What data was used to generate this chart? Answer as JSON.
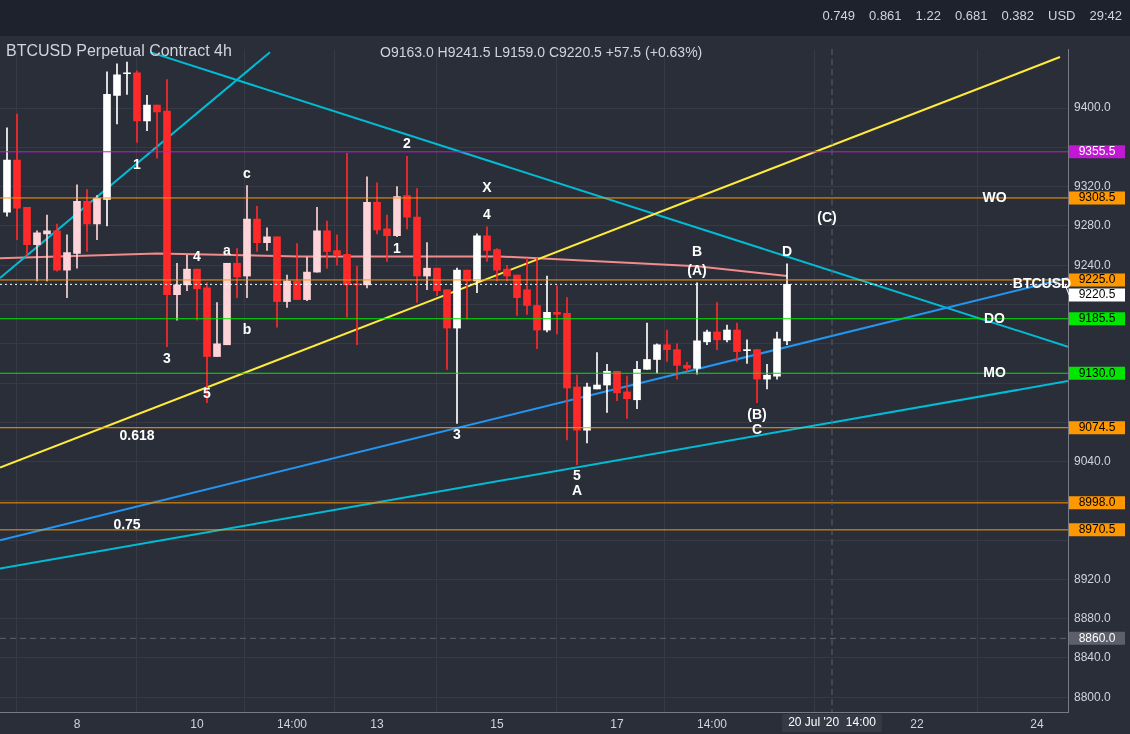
{
  "chart_data": {
    "type": "candlestick",
    "title": "BTCUSD Perpetual Contract 4h",
    "subtitle": "O9163.0 H9241.5 L9159.0 C9220.5 +57.5 (+0.63%)",
    "x": [
      "2020-07-06T20:00",
      "2020-07-07T00:00",
      "2020-07-07T04:00",
      "2020-07-07T08:00",
      "2020-07-07T12:00",
      "2020-07-07T16:00",
      "2020-07-07T20:00",
      "2020-07-08T00:00",
      "2020-07-08T04:00",
      "2020-07-08T08:00",
      "2020-07-08T12:00",
      "2020-07-08T16:00",
      "2020-07-08T20:00",
      "2020-07-09T00:00",
      "2020-07-09T04:00",
      "2020-07-09T08:00",
      "2020-07-09T12:00",
      "2020-07-09T16:00",
      "2020-07-09T20:00",
      "2020-07-10T00:00",
      "2020-07-10T04:00",
      "2020-07-10T08:00",
      "2020-07-10T12:00",
      "2020-07-10T16:00",
      "2020-07-10T20:00",
      "2020-07-11T00:00",
      "2020-07-11T04:00",
      "2020-07-11T08:00",
      "2020-07-11T12:00",
      "2020-07-11T16:00",
      "2020-07-11T20:00",
      "2020-07-12T00:00",
      "2020-07-12T04:00",
      "2020-07-12T08:00",
      "2020-07-12T12:00",
      "2020-07-12T16:00",
      "2020-07-12T20:00",
      "2020-07-13T00:00",
      "2020-07-13T04:00",
      "2020-07-13T08:00",
      "2020-07-13T12:00",
      "2020-07-13T16:00",
      "2020-07-13T20:00",
      "2020-07-14T00:00",
      "2020-07-14T04:00",
      "2020-07-14T08:00",
      "2020-07-14T12:00",
      "2020-07-14T16:00",
      "2020-07-14T20:00",
      "2020-07-15T00:00",
      "2020-07-15T04:00",
      "2020-07-15T08:00",
      "2020-07-15T12:00",
      "2020-07-15T16:00",
      "2020-07-15T20:00",
      "2020-07-16T00:00",
      "2020-07-16T04:00",
      "2020-07-16T08:00",
      "2020-07-16T12:00",
      "2020-07-16T16:00",
      "2020-07-16T20:00",
      "2020-07-17T00:00",
      "2020-07-17T04:00",
      "2020-07-17T08:00",
      "2020-07-17T12:00",
      "2020-07-17T16:00",
      "2020-07-17T20:00",
      "2020-07-18T00:00",
      "2020-07-18T04:00",
      "2020-07-18T08:00",
      "2020-07-18T12:00",
      "2020-07-18T16:00",
      "2020-07-18T20:00",
      "2020-07-19T00:00",
      "2020-07-19T04:00",
      "2020-07-19T08:00",
      "2020-07-19T12:00",
      "2020-07-19T16:00",
      "2020-07-19T20:00"
    ],
    "ohlc": [
      [
        9294,
        9380,
        9290,
        9347
      ],
      [
        9347,
        9394,
        9266,
        9298
      ],
      [
        9299,
        9299,
        9249,
        9261
      ],
      [
        9261,
        9275,
        9224,
        9273
      ],
      [
        9272,
        9291,
        9224,
        9275
      ],
      [
        9275,
        9282,
        9234,
        9235
      ],
      [
        9235,
        9271,
        9207,
        9253
      ],
      [
        9252,
        9322,
        9237,
        9305
      ],
      [
        9305,
        9317,
        9254,
        9282
      ],
      [
        9282,
        9311,
        9266,
        9308
      ],
      [
        9307,
        9437,
        9280,
        9414
      ],
      [
        9413,
        9445,
        9384,
        9434
      ],
      [
        9435,
        9447,
        9414,
        9435
      ],
      [
        9436,
        9438,
        9365,
        9387
      ],
      [
        9387,
        9413,
        9377,
        9403
      ],
      [
        9403,
        9403,
        9349,
        9396
      ],
      [
        9397,
        9429,
        9157,
        9210
      ],
      [
        9210,
        9242,
        9184,
        9220
      ],
      [
        9220,
        9250,
        9214,
        9236
      ],
      [
        9236,
        9236,
        9184,
        9216
      ],
      [
        9217,
        9222,
        9100,
        9147
      ],
      [
        9147,
        9202,
        9147,
        9160
      ],
      [
        9159,
        9242,
        9159,
        9242
      ],
      [
        9242,
        9257,
        9207,
        9228
      ],
      [
        9229,
        9321,
        9207,
        9287
      ],
      [
        9287,
        9300,
        9254,
        9263
      ],
      [
        9263,
        9278,
        9255,
        9269
      ],
      [
        9269,
        9269,
        9177,
        9203
      ],
      [
        9203,
        9230,
        9197,
        9224
      ],
      [
        9224,
        9262,
        9205,
        9205
      ],
      [
        9205,
        9248,
        9204,
        9233
      ],
      [
        9233,
        9299,
        9233,
        9275
      ],
      [
        9275,
        9285,
        9237,
        9254
      ],
      [
        9255,
        9271,
        9240,
        9250
      ],
      [
        9251,
        9354,
        9187,
        9220
      ],
      [
        9221,
        9239,
        9159,
        9220
      ],
      [
        9220,
        9330,
        9217,
        9304
      ],
      [
        9304,
        9324,
        9272,
        9276
      ],
      [
        9277,
        9291,
        9244,
        9270
      ],
      [
        9270,
        9320,
        9269,
        9310
      ],
      [
        9311,
        9351,
        9277,
        9289
      ],
      [
        9289,
        9318,
        9202,
        9229
      ],
      [
        9229,
        9263,
        9215,
        9237
      ],
      [
        9237,
        9237,
        9209,
        9214
      ],
      [
        9215,
        9215,
        9134,
        9176
      ],
      [
        9176,
        9237,
        9079,
        9235
      ],
      [
        9235,
        9235,
        9185,
        9224
      ],
      [
        9224,
        9272,
        9212,
        9270
      ],
      [
        9270,
        9279,
        9244,
        9255
      ],
      [
        9256,
        9257,
        9224,
        9235
      ],
      [
        9236,
        9240,
        9224,
        9229
      ],
      [
        9230,
        9230,
        9189,
        9207
      ],
      [
        9215,
        9247,
        9190,
        9199
      ],
      [
        9199,
        9247,
        9155,
        9174
      ],
      [
        9174,
        9229,
        9172,
        9192
      ],
      [
        9192,
        9219,
        9170,
        9190
      ],
      [
        9191,
        9207,
        9062,
        9115
      ],
      [
        9116,
        9128,
        9037,
        9072
      ],
      [
        9072,
        9120,
        9059,
        9116
      ],
      [
        9114,
        9151,
        9114,
        9118
      ],
      [
        9118,
        9139,
        9090,
        9132
      ],
      [
        9132,
        9132,
        9102,
        9110
      ],
      [
        9111,
        9127,
        9084,
        9104
      ],
      [
        9103,
        9142,
        9094,
        9134
      ],
      [
        9134,
        9181,
        9134,
        9144
      ],
      [
        9144,
        9160,
        9130,
        9159
      ],
      [
        9159,
        9174,
        9142,
        9154
      ],
      [
        9154,
        9160,
        9124,
        9138
      ],
      [
        9138,
        9141,
        9132,
        9135
      ],
      [
        9135,
        9222,
        9129,
        9163
      ],
      [
        9162,
        9174,
        9159,
        9172
      ],
      [
        9172,
        9202,
        9154,
        9164
      ],
      [
        9164,
        9179,
        9162,
        9174
      ],
      [
        9174,
        9181,
        9142,
        9152
      ],
      [
        9153,
        9164,
        9140,
        9154
      ],
      [
        9154,
        9154,
        9100,
        9124
      ],
      [
        9124,
        9139,
        9114,
        9128
      ],
      [
        9127,
        9172,
        9124,
        9165
      ],
      [
        9163,
        9241.5,
        9159,
        9220.5
      ]
    ],
    "colors": [
      "#ffffff",
      "#ff2a2a",
      "#ff2a2a",
      "#ffd4d8",
      "#ffd4d8",
      "#ff2a2a",
      "#ffd4d8",
      "#ffd4d8",
      "#ff2a2a",
      "#ffd4d8",
      "#ffffff",
      "#ffffff",
      "#ffffff",
      "#ff2a2a",
      "#ffffff",
      "#ff2a2a",
      "#ff2a2a",
      "#ffd4d8",
      "#ffd4d8",
      "#ff2a2a",
      "#ff2a2a",
      "#ffd4d8",
      "#ffd4d8",
      "#ff2a2a",
      "#ffd4d8",
      "#ff2a2a",
      "#ffd4d8",
      "#ff2a2a",
      "#ffd4d8",
      "#ff2a2a",
      "#ffd4d8",
      "#ffd4d8",
      "#ff2a2a",
      "#ff2a2a",
      "#ff2a2a",
      "#ff2a2a",
      "#ffd4d8",
      "#ff2a2a",
      "#ff2a2a",
      "#ffd4d8",
      "#ff2a2a",
      "#ff2a2a",
      "#ffd4d8",
      "#ff2a2a",
      "#ff2a2a",
      "#ffffff",
      "#ff2a2a",
      "#ffffff",
      "#ff2a2a",
      "#ff2a2a",
      "#ff2a2a",
      "#ff2a2a",
      "#ff2a2a",
      "#ff2a2a",
      "#ffffff",
      "#ff2a2a",
      "#ff2a2a",
      "#ff2a2a",
      "#ffffff",
      "#ffffff",
      "#ffffff",
      "#ff2a2a",
      "#ff2a2a",
      "#ffffff",
      "#ffffff",
      "#ffffff",
      "#ff2a2a",
      "#ff2a2a",
      "#ff2a2a",
      "#ffffff",
      "#ffffff",
      "#ff2a2a",
      "#ffffff",
      "#ff2a2a",
      "#ffffff",
      "#ff2a2a",
      "#ffffff",
      "#ffffff",
      "#ffffff"
    ],
    "series": [
      {
        "type": "line",
        "color": "#ffeb3b",
        "x": [
          "2020-07-06T17:12",
          "2020-07-24T09:12"
        ],
        "values": [
          9034,
          9452
        ]
      },
      {
        "type": "line",
        "color": "#2196f3",
        "x": [
          "2020-07-06T17:12",
          "2020-07-24T12:24"
        ],
        "values": [
          8960,
          9227
        ]
      },
      {
        "type": "line",
        "color": "#00bcd4",
        "x": [
          "2020-07-06T17:12",
          "2020-07-24T12:24"
        ],
        "values": [
          8931,
          9122
        ]
      },
      {
        "type": "line",
        "color": "#00bcd4",
        "x": [
          "2020-07-09T05:12",
          "2020-07-24T12:24"
        ],
        "values": [
          9457,
          9157
        ]
      },
      {
        "type": "line",
        "color": "#00bcd4",
        "x": [
          "2020-07-06T17:12",
          "2020-07-11T05:12"
        ],
        "values": [
          9227,
          9457
        ]
      },
      {
        "type": "line",
        "color": "#f28b8b",
        "x": [
          "2020-07-06T17:12",
          "2020-07-09T08:00",
          "2020-07-11T17:00",
          "2020-07-15T01:00",
          "2020-07-18T08:00",
          "2020-07-19T20:00"
        ],
        "values": [
          9247,
          9252,
          9249,
          9249,
          9239,
          9229
        ]
      }
    ],
    "xlim": [
      "2020-07-06T17:12",
      "2020-07-24T12:24"
    ],
    "xticks": [
      {
        "value": "2020-07-08",
        "label": "8"
      },
      {
        "value": "2020-07-10",
        "label": "10"
      },
      {
        "value": "2020-07-11T14:00",
        "label": "14:00"
      },
      {
        "value": "2020-07-13",
        "label": "13"
      },
      {
        "value": "2020-07-15",
        "label": "15"
      },
      {
        "value": "2020-07-17",
        "label": "17"
      },
      {
        "value": "2020-07-18T14:00",
        "label": "14:00"
      },
      {
        "value": "2020-07-22",
        "label": "22"
      },
      {
        "value": "2020-07-24",
        "label": "24"
      }
    ],
    "ylim": [
      8785,
      9460
    ],
    "yticks": [
      {
        "value": 9400,
        "label": "9400.0"
      },
      {
        "value": 9360,
        "label": null
      },
      {
        "value": 9320,
        "label": "9320.0"
      },
      {
        "value": 9280,
        "label": "9280.0"
      },
      {
        "value": 9240,
        "label": "9240.0"
      },
      {
        "value": 9200,
        "label": null
      },
      {
        "value": 9160,
        "label": null
      },
      {
        "value": 9120,
        "label": null
      },
      {
        "value": 9080,
        "label": null
      },
      {
        "value": 9040,
        "label": "9040.0"
      },
      {
        "value": 9000,
        "label": null
      },
      {
        "value": 8960,
        "label": null
      },
      {
        "value": 8920,
        "label": "8920.0"
      },
      {
        "value": 8880,
        "label": "8880.0"
      },
      {
        "value": 8840,
        "label": "8840.0"
      },
      {
        "value": 8800,
        "label": "8800.0"
      }
    ],
    "grid": true,
    "ref_lines": [
      {
        "axis": "y",
        "value": 9355.5,
        "color": "#c218d6",
        "label": "9355.5"
      },
      {
        "axis": "y",
        "value": 9308.5,
        "color": "#ff9800",
        "label": "9308.5"
      },
      {
        "axis": "y",
        "value": 9225.0,
        "color": "#ff9800",
        "label": "9225.0"
      },
      {
        "axis": "y",
        "value": 9220.5,
        "color": "#ffffff",
        "label": "9220.5",
        "line_style": "dotted"
      },
      {
        "axis": "y",
        "value": 9185.5,
        "color": "#00e600",
        "label": "9185.5"
      },
      {
        "axis": "y",
        "value": 9130.0,
        "color": "#00e600",
        "label": "9130.0"
      },
      {
        "axis": "y",
        "value": 9074.5,
        "color": "#ff9800",
        "label": "9074.5"
      },
      {
        "axis": "y",
        "value": 8998.0,
        "color": "#ff9800",
        "label": "8998.0"
      },
      {
        "axis": "y",
        "value": 8970.5,
        "color": "#ff9800",
        "label": "8970.5"
      },
      {
        "axis": "y",
        "value": 8860.0,
        "color": "#5d606b",
        "label": "8860.0",
        "line_style": "dashed"
      },
      {
        "axis": "x",
        "value": "2020-07-20T14:00",
        "color": "#5d606b",
        "label": "20 Jul '20  14:00",
        "line_style": "dashed"
      }
    ],
    "annotations": [
      {
        "text": "1",
        "x": "2020-07-09T00:00",
        "y": 9354
      },
      {
        "text": "2",
        "x": "2020-07-13T12:00",
        "y": 9351
      },
      {
        "text": "3",
        "x": "2020-07-09T12:00",
        "y": 9157
      },
      {
        "text": "4",
        "x": "2020-07-10T00:00",
        "y": 9236
      },
      {
        "text": "5",
        "x": "2020-07-10T04:00",
        "y": 9109
      },
      {
        "text": "a",
        "x": "2020-07-10T12:00",
        "y": 9242
      },
      {
        "text": "b",
        "x": "2020-07-10T20:00",
        "y": 9186
      },
      {
        "text": "c",
        "x": "2020-07-10T20:00",
        "y": 9321
      },
      {
        "text": "1",
        "x": "2020-07-13T08:00",
        "y": 9269
      },
      {
        "text": "3",
        "x": "2020-07-14T08:00",
        "y": 9079
      },
      {
        "text": "X",
        "x": "2020-07-14T20:00",
        "y": 9306
      },
      {
        "text": "4",
        "x": "2020-07-14T20:00",
        "y": 9279
      },
      {
        "text": "5",
        "x": "2020-07-16T08:00",
        "y": 9037
      },
      {
        "text": "A",
        "x": "2020-07-16T08:00",
        "y": 9037
      },
      {
        "text": "(A)",
        "x": "2020-07-18T08:00",
        "y": 9222
      },
      {
        "text": "B",
        "x": "2020-07-18T08:00",
        "y": 9241
      },
      {
        "text": "(B)",
        "x": "2020-07-19T08:00",
        "y": 9100
      },
      {
        "text": "C",
        "x": "2020-07-19T08:00",
        "y": 9100
      },
      {
        "text": "D",
        "x": "2020-07-19T20:00",
        "y": 9241.5
      },
      {
        "text": "(C)",
        "x": "2020-07-20T12:00",
        "y": 9288
      },
      {
        "text": "0.618",
        "x": "2020-07-09T00:00",
        "y": 9078
      },
      {
        "text": "0.75",
        "x": "2020-07-08T20:00",
        "y": 8988
      },
      {
        "text": "WO",
        "x": "2020-07-23T07:00",
        "y": 9308.5
      },
      {
        "text": "DO",
        "x": "2020-07-23T07:00",
        "y": 9185.5
      },
      {
        "text": "MO",
        "x": "2020-07-23T07:00",
        "y": 9130.0
      },
      {
        "text": "BTCUSD",
        "x": "2020-07-24T02:00",
        "y": 9220.5
      },
      "0.749",
      "0.861",
      "1.22",
      "0.681",
      "0.382",
      "USD",
      "29:42"
    ]
  }
}
